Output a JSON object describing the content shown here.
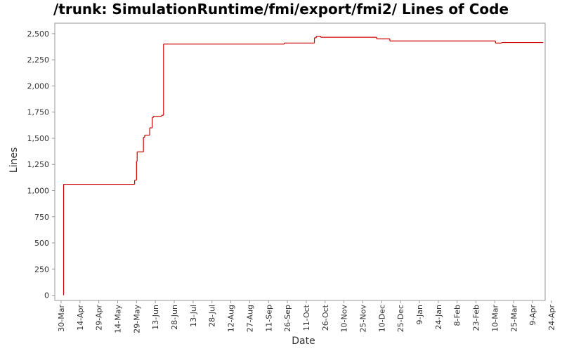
{
  "chart_data": {
    "type": "step-line",
    "title": "/trunk: SimulationRuntime/fmi/export/fmi2/ Lines of Code",
    "x_label": "Date",
    "y_label": "Lines",
    "x": [
      2,
      2,
      58.5,
      60,
      60.5,
      65.5,
      66.5,
      70.5,
      72.5,
      73.5,
      80,
      81.5,
      177.5,
      201.5,
      203,
      206.5,
      251,
      261.5,
      345.5,
      350.5,
      383.5
    ],
    "series": [
      {
        "name": "Lines",
        "color": "#cc0000",
        "values": [
          0,
          1060,
          1100,
          1280,
          1370,
          1510,
          1530,
          1600,
          1700,
          1710,
          1720,
          2400,
          2410,
          2460,
          2475,
          2465,
          2450,
          2430,
          2410,
          2415,
          2415
        ]
      }
    ],
    "xlim": [
      -5,
      385
    ],
    "ylim": [
      -50,
      2600
    ],
    "xticks": [
      {
        "value": 0,
        "label": "30-Mar"
      },
      {
        "value": 15,
        "label": "14-Apr"
      },
      {
        "value": 30,
        "label": "29-Apr"
      },
      {
        "value": 45,
        "label": "14-May"
      },
      {
        "value": 60,
        "label": "29-May"
      },
      {
        "value": 75,
        "label": "13-Jun"
      },
      {
        "value": 90,
        "label": "28-Jun"
      },
      {
        "value": 105,
        "label": "13-Jul"
      },
      {
        "value": 120,
        "label": "28-Jul"
      },
      {
        "value": 135,
        "label": "12-Aug"
      },
      {
        "value": 150,
        "label": "27-Aug"
      },
      {
        "value": 165,
        "label": "11-Sep"
      },
      {
        "value": 180,
        "label": "26-Sep"
      },
      {
        "value": 195,
        "label": "11-Oct"
      },
      {
        "value": 210,
        "label": "26-Oct"
      },
      {
        "value": 225,
        "label": "10-Nov"
      },
      {
        "value": 240,
        "label": "25-Nov"
      },
      {
        "value": 255,
        "label": "10-Dec"
      },
      {
        "value": 270,
        "label": "25-Dec"
      },
      {
        "value": 285,
        "label": "9-Jan"
      },
      {
        "value": 300,
        "label": "24-Jan"
      },
      {
        "value": 315,
        "label": "8-Feb"
      },
      {
        "value": 330,
        "label": "23-Feb"
      },
      {
        "value": 345,
        "label": "10-Mar"
      },
      {
        "value": 360,
        "label": "25-Mar"
      },
      {
        "value": 375,
        "label": "9-Apr"
      },
      {
        "value": 390,
        "label": "24-Apr"
      }
    ],
    "yticks": [
      0,
      250,
      500,
      750,
      {
        "value": 1000,
        "label": "1,000"
      },
      {
        "value": 1250,
        "label": "1,250"
      },
      {
        "value": 1500,
        "label": "1,500"
      },
      {
        "value": 1750,
        "label": "1,750"
      },
      {
        "value": 2000,
        "label": "2,000"
      },
      {
        "value": 2250,
        "label": "2,250"
      },
      {
        "value": 2500,
        "label": "2,500"
      }
    ],
    "grid": false
  }
}
